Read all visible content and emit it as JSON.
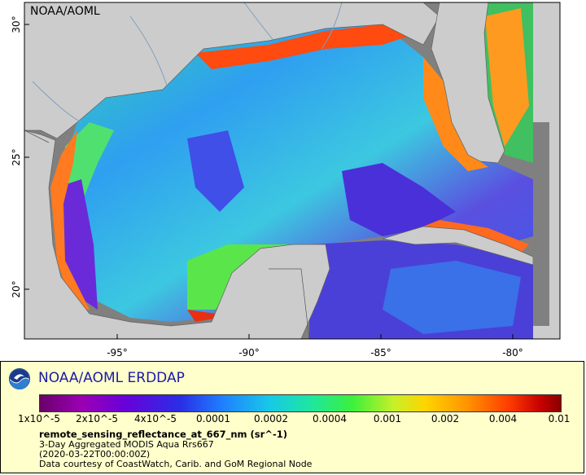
{
  "map": {
    "credit": "NOAA/AOML",
    "lat_ticks": [
      "30°",
      "25°",
      "20°"
    ],
    "lon_ticks": [
      "-95°",
      "-90°",
      "-85°",
      "-80°"
    ],
    "colors": {
      "land": "#cccccc",
      "no_data": "#808080",
      "coast": "#606060",
      "rivers": "#7fa0c0"
    }
  },
  "legend": {
    "brand": "NOAA/AOML ERDDAP",
    "logo_icon": "noaa-logo-icon",
    "colorbar_labels": [
      "1x10^-5",
      "2x10^-5",
      "4x10^-5",
      "0.0001",
      "0.0002",
      "0.0004",
      "0.001",
      "0.002",
      "0.004",
      "0.01"
    ],
    "variable": "remote_sensing_reflectance_at_667_nm (sr^-1)",
    "dataset": "3-Day Aggregated MODIS Aqua Rrs667",
    "time": "(2020-03-22T00:00:00Z)",
    "credit": "Data courtesy of CoastWatch, Carib. and GoM Regional Node"
  }
}
